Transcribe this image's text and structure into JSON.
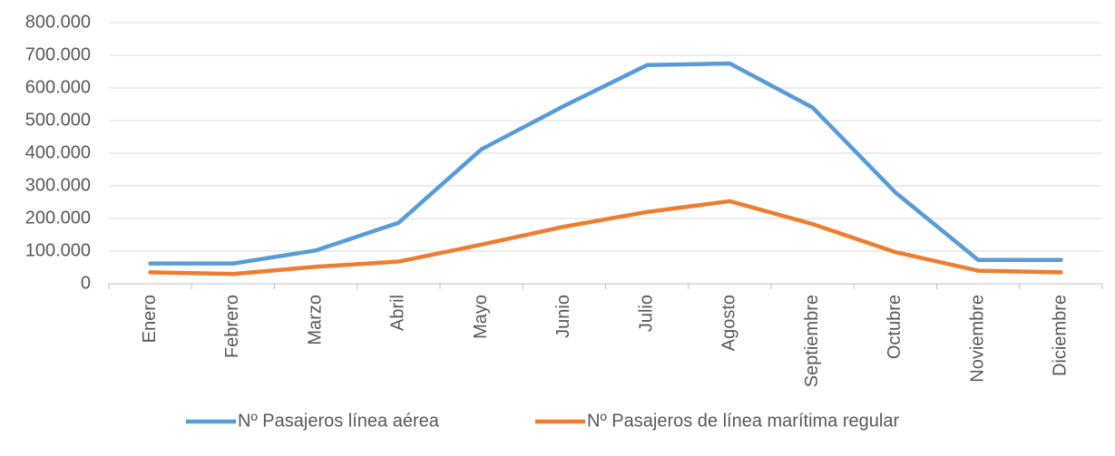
{
  "chart_data": {
    "type": "line",
    "categories": [
      "Enero",
      "Febrero",
      "Marzo",
      "Abril",
      "Mayo",
      "Junio",
      "Julio",
      "Agosto",
      "Septiembre",
      "Octubre",
      "Noviembre",
      "Diciembre"
    ],
    "series": [
      {
        "name": "Nº Pasajeros línea aérea",
        "color": "#5b9bd5",
        "values": [
          62000,
          62000,
          102000,
          187000,
          412000,
          545000,
          670000,
          675000,
          540000,
          280000,
          73000,
          73000
        ]
      },
      {
        "name": "Nº Pasajeros de línea marítima regular",
        "color": "#ed7d31",
        "values": [
          35000,
          30000,
          52000,
          68000,
          120000,
          175000,
          220000,
          253000,
          183000,
          97000,
          40000,
          35000
        ]
      }
    ],
    "ylim": [
      0,
      800000
    ],
    "yticks": [
      0,
      {
        "value": 100000,
        "label": "100.000"
      },
      {
        "value": 200000,
        "label": "200.000"
      },
      {
        "value": 300000,
        "label": "300.000"
      },
      {
        "value": 400000,
        "label": "400.000"
      },
      {
        "value": 500000,
        "label": "500.000"
      },
      {
        "value": 600000,
        "label": "600.000"
      },
      {
        "value": 700000,
        "label": "700.000"
      },
      {
        "value": 800000,
        "label": "800.000"
      }
    ],
    "grid": true,
    "legend": "bottom"
  }
}
